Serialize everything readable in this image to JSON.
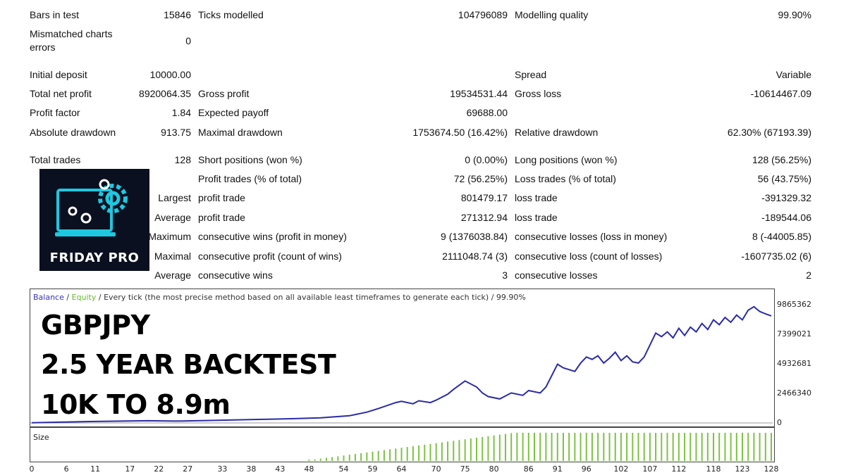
{
  "report": {
    "bars_in_test_label": "Bars in test",
    "bars_in_test": "15846",
    "ticks_modelled_label": "Ticks modelled",
    "ticks_modelled": "104796089",
    "modelling_quality_label": "Modelling quality",
    "modelling_quality": "99.90%",
    "mismatched_label_1": "Mismatched charts",
    "mismatched_label_2": "errors",
    "mismatched": "0",
    "initial_deposit_label": "Initial deposit",
    "initial_deposit": "10000.00",
    "spread_label": "Spread",
    "spread": "Variable",
    "total_net_profit_label": "Total net profit",
    "total_net_profit": "8920064.35",
    "gross_profit_label": "Gross profit",
    "gross_profit": "19534531.44",
    "gross_loss_label": "Gross loss",
    "gross_loss": "-10614467.09",
    "profit_factor_label": "Profit factor",
    "profit_factor": "1.84",
    "expected_payoff_label": "Expected payoff",
    "expected_payoff": "69688.00",
    "absolute_drawdown_label": "Absolute drawdown",
    "absolute_drawdown": "913.75",
    "maximal_drawdown_label": "Maximal drawdown",
    "maximal_drawdown": "1753674.50 (16.42%)",
    "relative_drawdown_label": "Relative drawdown",
    "relative_drawdown": "62.30% (67193.39)",
    "total_trades_label": "Total trades",
    "total_trades": "128",
    "short_positions_label": "Short positions (won %)",
    "short_positions": "0 (0.00%)",
    "long_positions_label": "Long positions (won %)",
    "long_positions": "128 (56.25%)",
    "profit_trades_label": "Profit trades (% of total)",
    "profit_trades": "72 (56.25%)",
    "loss_trades_label": "Loss trades (% of total)",
    "loss_trades": "56 (43.75%)",
    "largest_label": "Largest",
    "largest_profit_label": "profit trade",
    "largest_profit": "801479.17",
    "largest_loss_label": "loss trade",
    "largest_loss": "-391329.32",
    "average_label": "Average",
    "average_profit_label": "profit trade",
    "average_profit": "271312.94",
    "average_loss_label": "loss trade",
    "average_loss": "-189544.06",
    "maximum_label": "Maximum",
    "max_wins_label": "consecutive wins (profit in money)",
    "max_wins": "9 (1376038.84)",
    "max_losses_label": "consecutive losses (loss in money)",
    "max_losses": "8 (-44005.85)",
    "maximal_label": "Maximal",
    "maximal_profit_label": "consecutive profit (count of wins)",
    "maximal_profit": "2111048.74 (3)",
    "maximal_loss_label": "consecutive loss (count of losses)",
    "maximal_loss": "-1607735.02 (6)",
    "average2_label": "Average",
    "avg_wins_label": "consecutive wins",
    "avg_wins": "3",
    "avg_losses_label": "consecutive losses",
    "avg_losses": "2"
  },
  "logo": {
    "text": "FRIDAY PRO",
    "accent": "#1ec8e0"
  },
  "overlay": {
    "line1": "GBPJPY",
    "line2": "2.5 YEAR BACKTEST",
    "line3": "10K TO 8.9m"
  },
  "chart_legend": {
    "balance": "Balance",
    "sep1": " / ",
    "equity": "Equity",
    "rest": " / Every tick (the most precise method based on all available least timeframes to generate each tick) / 99.90%"
  },
  "size_label": "Size",
  "chart_data": {
    "type": "line",
    "y_ticks": [
      "9865362",
      "7399021",
      "4932681",
      "2466340",
      "0"
    ],
    "x_ticks": [
      "0",
      "6",
      "11",
      "17",
      "22",
      "27",
      "33",
      "38",
      "43",
      "48",
      "54",
      "59",
      "64",
      "70",
      "75",
      "80",
      "86",
      "91",
      "96",
      "102",
      "107",
      "112",
      "118",
      "123",
      "128"
    ],
    "ylim": [
      0,
      9865362
    ],
    "xlim": [
      0,
      128
    ],
    "series": [
      {
        "name": "Balance",
        "color": "#2b2ba8",
        "x": [
          0,
          10,
          20,
          25,
          30,
          40,
          45,
          50,
          55,
          58,
          60,
          63,
          64,
          66,
          67,
          69,
          70,
          72,
          73,
          75,
          77,
          78,
          79,
          81,
          83,
          85,
          86,
          88,
          89,
          91,
          92,
          94,
          95,
          96,
          97,
          98,
          99,
          100,
          101,
          102,
          103,
          104,
          105,
          106,
          107,
          108,
          109,
          110,
          111,
          112,
          113,
          114,
          115,
          116,
          117,
          118,
          119,
          120,
          121,
          122,
          123,
          124,
          125,
          126,
          127,
          128
        ],
        "y": [
          10000,
          120000,
          180000,
          150000,
          200000,
          300000,
          350000,
          420000,
          600000,
          900000,
          1200000,
          1700000,
          1800000,
          1600000,
          1850000,
          1700000,
          1900000,
          2400000,
          2800000,
          3500000,
          3000000,
          2500000,
          2200000,
          2000000,
          2500000,
          2300000,
          2700000,
          2500000,
          3000000,
          4900000,
          4600000,
          4300000,
          5000000,
          5500000,
          5300000,
          5600000,
          5000000,
          5400000,
          5900000,
          5200000,
          5600000,
          5100000,
          5000000,
          5500000,
          6500000,
          7500000,
          7200000,
          7600000,
          7100000,
          7900000,
          7300000,
          8000000,
          7600000,
          8300000,
          7800000,
          8600000,
          8200000,
          8800000,
          8400000,
          9000000,
          8600000,
          9400000,
          9700000,
          9300000,
          9100000,
          8930000
        ]
      },
      {
        "name": "Equity",
        "color": "#66b830"
      }
    ],
    "size_bars": {
      "start_index": 48,
      "end_index": 128,
      "color": "#7cc242"
    }
  }
}
